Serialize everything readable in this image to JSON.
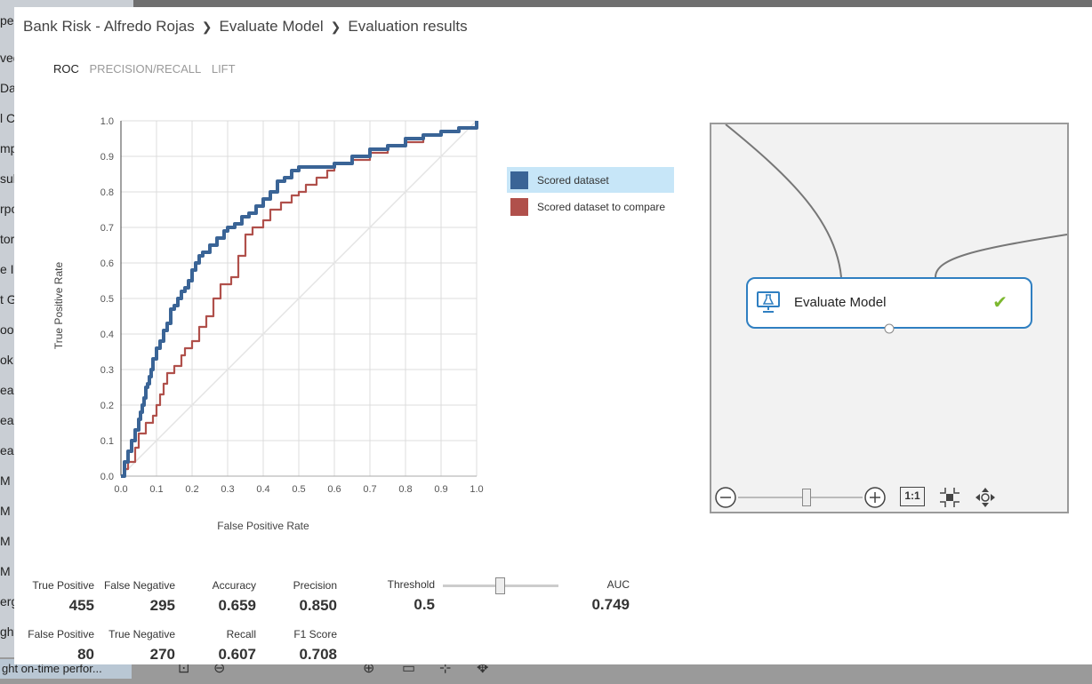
{
  "background": {
    "left_items": [
      "peri",
      "ved",
      "Da",
      "l C",
      "mpl",
      "sult",
      "rpo",
      "tor",
      "e I",
      "t G",
      "oo",
      "ok",
      "eas",
      "eas",
      "eas",
      "M",
      "M",
      "M",
      "M",
      "erg",
      "ght"
    ],
    "bottom_label": "ght on-time perfor..."
  },
  "breadcrumb": [
    "Bank Risk - Alfredo Rojas",
    "Evaluate Model",
    "Evaluation results"
  ],
  "tabs": [
    {
      "label": "ROC",
      "active": true
    },
    {
      "label": "PRECISION/RECALL",
      "active": false
    },
    {
      "label": "LIFT",
      "active": false
    }
  ],
  "chart_data": {
    "type": "line",
    "xlabel": "False Positive Rate",
    "ylabel": "True Positive Rate",
    "xlim": [
      0,
      1
    ],
    "ylim": [
      0,
      1
    ],
    "xticks": [
      "0.0",
      "0.1",
      "0.2",
      "0.3",
      "0.4",
      "0.5",
      "0.6",
      "0.7",
      "0.8",
      "0.9",
      "1.0"
    ],
    "yticks": [
      "0.0",
      "0.1",
      "0.2",
      "0.3",
      "0.4",
      "0.5",
      "0.6",
      "0.7",
      "0.8",
      "0.9",
      "1.0"
    ],
    "grid": true,
    "legend_position": "right",
    "diagonal": true,
    "series": [
      {
        "name": "Scored dataset",
        "color": "#3a6496",
        "x": [
          0,
          0.01,
          0.02,
          0.03,
          0.04,
          0.05,
          0.055,
          0.06,
          0.065,
          0.07,
          0.075,
          0.08,
          0.085,
          0.09,
          0.1,
          0.11,
          0.12,
          0.13,
          0.14,
          0.15,
          0.16,
          0.17,
          0.18,
          0.19,
          0.2,
          0.21,
          0.22,
          0.23,
          0.25,
          0.27,
          0.29,
          0.3,
          0.32,
          0.34,
          0.36,
          0.38,
          0.4,
          0.42,
          0.44,
          0.46,
          0.48,
          0.5,
          0.55,
          0.6,
          0.65,
          0.7,
          0.75,
          0.8,
          0.85,
          0.9,
          0.95,
          1.0
        ],
        "y": [
          0,
          0.04,
          0.07,
          0.1,
          0.13,
          0.16,
          0.18,
          0.2,
          0.22,
          0.25,
          0.26,
          0.28,
          0.3,
          0.33,
          0.36,
          0.38,
          0.41,
          0.43,
          0.47,
          0.48,
          0.5,
          0.52,
          0.53,
          0.55,
          0.58,
          0.6,
          0.62,
          0.63,
          0.65,
          0.67,
          0.69,
          0.7,
          0.71,
          0.73,
          0.74,
          0.76,
          0.78,
          0.8,
          0.83,
          0.84,
          0.86,
          0.87,
          0.87,
          0.88,
          0.9,
          0.92,
          0.93,
          0.95,
          0.96,
          0.97,
          0.98,
          1.0
        ]
      },
      {
        "name": "Scored dataset to compare",
        "color": "#b0504b",
        "x": [
          0,
          0.01,
          0.02,
          0.03,
          0.04,
          0.05,
          0.07,
          0.09,
          0.1,
          0.11,
          0.12,
          0.13,
          0.15,
          0.17,
          0.18,
          0.2,
          0.22,
          0.24,
          0.26,
          0.28,
          0.29,
          0.31,
          0.33,
          0.35,
          0.37,
          0.4,
          0.42,
          0.45,
          0.48,
          0.5,
          0.52,
          0.55,
          0.58,
          0.6,
          0.65,
          0.7,
          0.75,
          0.8,
          0.85,
          0.9,
          0.95,
          1.0
        ],
        "y": [
          0,
          0.02,
          0.04,
          0.04,
          0.08,
          0.12,
          0.15,
          0.17,
          0.2,
          0.23,
          0.26,
          0.29,
          0.31,
          0.34,
          0.36,
          0.38,
          0.42,
          0.45,
          0.5,
          0.54,
          0.54,
          0.56,
          0.62,
          0.68,
          0.7,
          0.72,
          0.75,
          0.77,
          0.79,
          0.8,
          0.82,
          0.84,
          0.86,
          0.88,
          0.89,
          0.91,
          0.93,
          0.94,
          0.96,
          0.97,
          0.98,
          1.0
        ]
      }
    ]
  },
  "canvas": {
    "module_label": "Evaluate Model",
    "check_icon": "check-icon",
    "toolbar_ratio_label": "1:1"
  },
  "metrics": {
    "true_positive": {
      "label": "True Positive",
      "value": "455"
    },
    "false_negative": {
      "label": "False Negative",
      "value": "295"
    },
    "accuracy": {
      "label": "Accuracy",
      "value": "0.659"
    },
    "precision": {
      "label": "Precision",
      "value": "0.850"
    },
    "threshold": {
      "label": "Threshold",
      "value": "0.5"
    },
    "auc": {
      "label": "AUC",
      "value": "0.749"
    },
    "false_positive": {
      "label": "False Positive",
      "value": "80"
    },
    "true_negative": {
      "label": "True Negative",
      "value": "270"
    },
    "recall": {
      "label": "Recall",
      "value": "0.607"
    },
    "f1_score": {
      "label": "F1 Score",
      "value": "0.708"
    }
  },
  "threshold_slider_value": 0.5
}
